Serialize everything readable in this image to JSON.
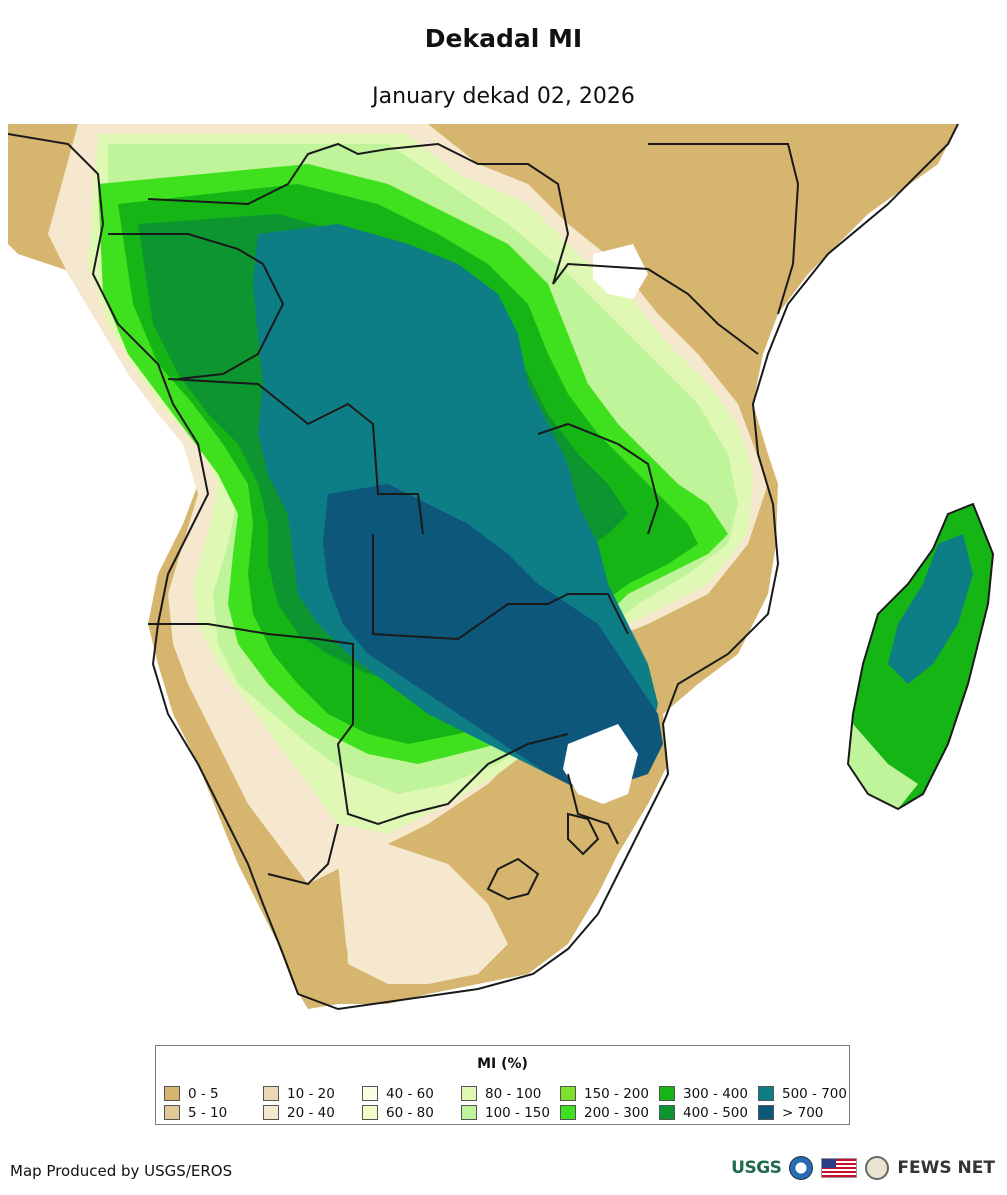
{
  "title": "Dekadal MI",
  "subtitle": "January dekad 02, 2026",
  "legend": {
    "title": "MI (%)",
    "items": [
      {
        "label": "0 - 5",
        "color": "#d6b56e"
      },
      {
        "label": "5 - 10",
        "color": "#e1c894"
      },
      {
        "label": "10 - 20",
        "color": "#ecd7b4"
      },
      {
        "label": "20 - 40",
        "color": "#f5e8cf"
      },
      {
        "label": "40 - 60",
        "color": "#fdfde6"
      },
      {
        "label": "60 - 80",
        "color": "#f3fbc9"
      },
      {
        "label": "80 - 100",
        "color": "#dff8b4"
      },
      {
        "label": "100 - 150",
        "color": "#bff49a"
      },
      {
        "label": "150 - 200",
        "color": "#7de02a"
      },
      {
        "label": "200 - 300",
        "color": "#3fe01d"
      },
      {
        "label": "300 - 400",
        "color": "#14b515"
      },
      {
        "label": "400 - 500",
        "color": "#0d9630"
      },
      {
        "label": "500 - 700",
        "color": "#0e7e86"
      },
      {
        "label": "> 700",
        "color": "#0c577a"
      }
    ]
  },
  "credit": "Map Produced by USGS/EROS",
  "logos": {
    "usgs": "USGS",
    "fewsnet": "FEWS NET"
  }
}
